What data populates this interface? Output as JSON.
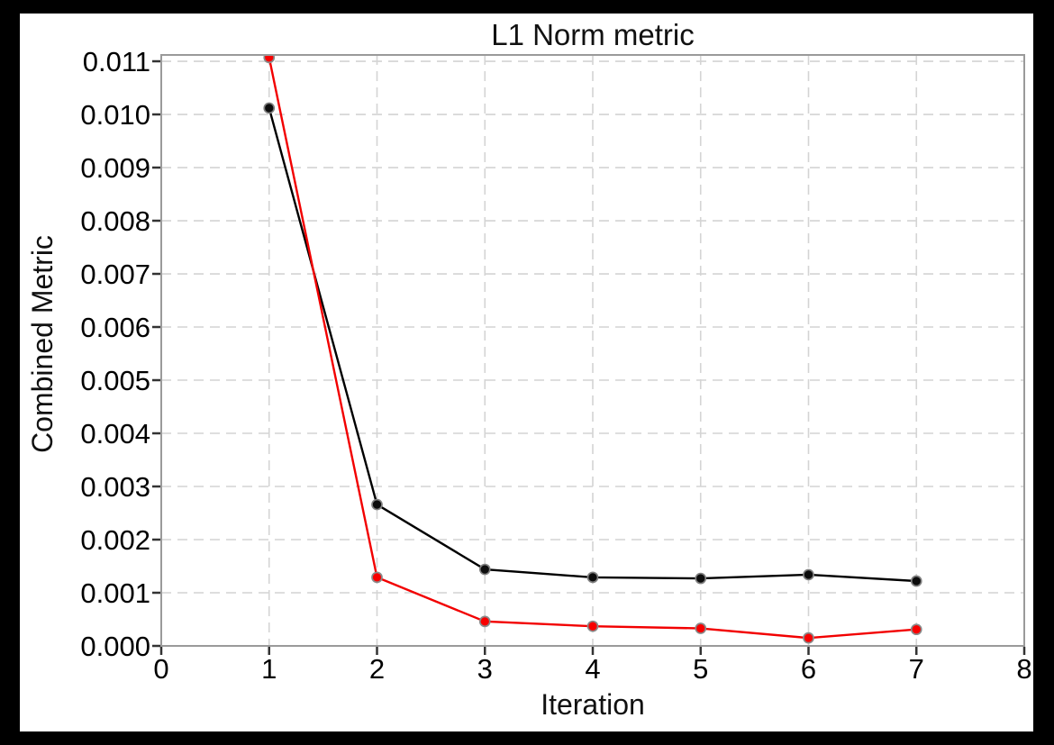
{
  "window": {
    "frame_color": "#000000",
    "plot_background": "#ffffff"
  },
  "chart_data": {
    "type": "line",
    "title": "L1 Norm metric",
    "xlabel": "Iteration",
    "ylabel": "Combined Metric",
    "xlim": [
      0,
      8
    ],
    "ylim": [
      0,
      0.011119
    ],
    "x_tick_values": [
      0,
      1,
      2,
      3,
      4,
      5,
      6,
      7,
      8
    ],
    "x_tick_labels": [
      "0",
      "1",
      "2",
      "3",
      "4",
      "5",
      "6",
      "7",
      "8"
    ],
    "y_tick_values": [
      0,
      0.001,
      0.002,
      0.003,
      0.004,
      0.005,
      0.006,
      0.007,
      0.008,
      0.009,
      0.01,
      0.011
    ],
    "y_tick_labels": [
      "0.000",
      "0.001",
      "0.002",
      "0.003",
      "0.004",
      "0.005",
      "0.006",
      "0.007",
      "0.008",
      "0.009",
      "0.010",
      "0.011"
    ],
    "grid": {
      "visible": true,
      "style": "dashed",
      "color": "#d4d4d4"
    },
    "legend": "none",
    "x": [
      1,
      2,
      3,
      4,
      5,
      6,
      7
    ],
    "series": [
      {
        "name": "black-series",
        "line_color": "#000000",
        "marker_fill": "#0d0d0d",
        "marker_edge": "#808080",
        "values": [
          0.01012,
          0.00266,
          0.00144,
          0.00129,
          0.00127,
          0.00134,
          0.00122
        ]
      },
      {
        "name": "red-series",
        "line_color": "#f20000",
        "marker_fill": "#f80000",
        "marker_edge": "#8a8a8a",
        "values": [
          0.01107,
          0.00129,
          0.00046,
          0.00037,
          0.00033,
          0.00015,
          0.00031
        ]
      }
    ]
  },
  "style": {
    "spine_color": "#9a9a9a",
    "tick_color": "#333333",
    "tick_label_color": "#000000",
    "tick_label_size": 31
  }
}
